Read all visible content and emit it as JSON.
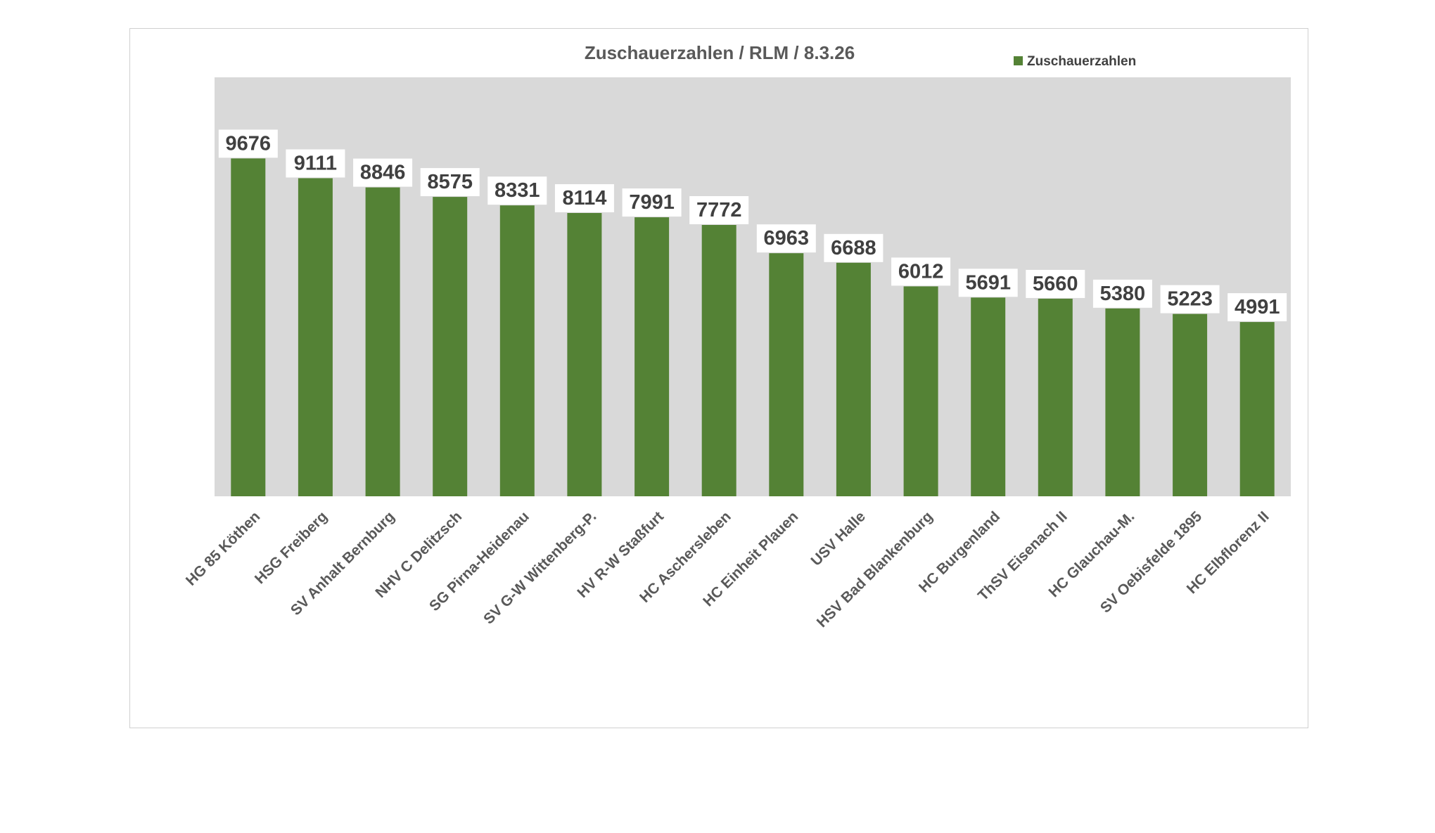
{
  "chart_data": {
    "type": "bar",
    "title": "Zuschauerzahlen / RLM / 8.3.26",
    "xlabel": "",
    "ylabel": "",
    "ylim": [
      0,
      12000
    ],
    "grid": false,
    "legend_position": "top-right",
    "categories": [
      "HG 85 Köthen",
      "HSG Freiberg",
      "SV Anhalt Bernburg",
      "NHV C Delitzsch",
      "SG Pirna-Heidenau",
      "SV G-W Wittenberg-P.",
      "HV R-W Staßfurt",
      "HC Aschersleben",
      "HC Einheit Plauen",
      "USV Halle",
      "HSV Bad Blankenburg",
      "HC Burgenland",
      "ThSV Eisenach II",
      "HC Glauchau-M.",
      "SV Oebisfelde 1895",
      "HC Elbflorenz II"
    ],
    "series": [
      {
        "name": "Zuschauerzahlen",
        "color": "#548235",
        "values": [
          9676,
          9111,
          8846,
          8575,
          8331,
          8114,
          7991,
          7772,
          6963,
          6688,
          6012,
          5691,
          5660,
          5380,
          5223,
          4991
        ]
      }
    ],
    "plot_area_color": "#d9d9d9"
  }
}
